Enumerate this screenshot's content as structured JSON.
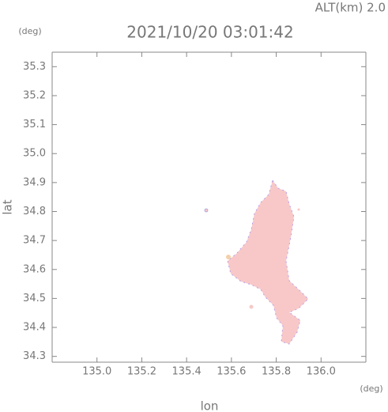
{
  "chart_data": {
    "type": "map",
    "title": "2021/10/20 03:01:42",
    "subtitle": "ALT(km)  2.0",
    "x_label": "lon",
    "y_label": "lat",
    "x_unit": "(deg)",
    "y_unit": "(deg)",
    "xlim": [
      134.8,
      136.2
    ],
    "ylim": [
      34.28,
      35.35
    ],
    "xticks": [
      {
        "value": 135,
        "label": "135.0"
      },
      135.2,
      135.4,
      135.6,
      135.8,
      {
        "value": 136,
        "label": "136.0"
      }
    ],
    "yticks": [
      34.3,
      34.4,
      34.5,
      34.6,
      34.7,
      34.8,
      34.9,
      {
        "value": 35,
        "label": "35.0"
      },
      35.1,
      35.2,
      35.3
    ],
    "color": "#f8c8c8"
  }
}
